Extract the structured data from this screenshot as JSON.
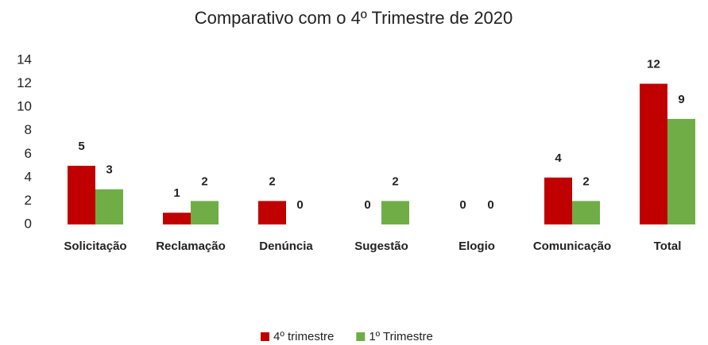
{
  "chart_data": {
    "type": "bar",
    "title": "Comparativo com o 4º Trimestre de 2020",
    "categories": [
      "Solicitação",
      "Reclamação",
      "Denúncia",
      "Sugestão",
      "Elogio",
      "Comunicação",
      "Total"
    ],
    "series": [
      {
        "name": "4º trimestre",
        "color": "#c00000",
        "values": [
          5,
          1,
          2,
          0,
          0,
          4,
          12
        ]
      },
      {
        "name": "1º Trimestre",
        "color": "#70ad47",
        "values": [
          3,
          2,
          0,
          2,
          0,
          2,
          9
        ]
      }
    ],
    "ylim": [
      0,
      14
    ],
    "yticks": [
      0,
      2,
      4,
      6,
      8,
      10,
      12,
      14
    ],
    "grid": false,
    "legend": "bottom"
  }
}
